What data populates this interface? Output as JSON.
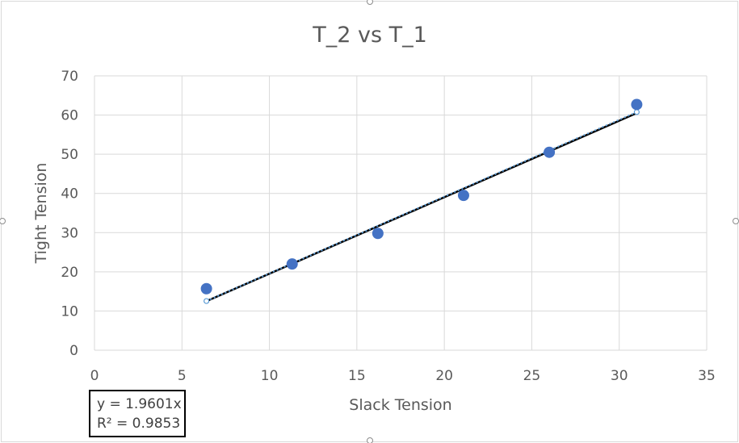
{
  "chart_data": {
    "type": "scatter",
    "title": "T_2 vs T_1",
    "xlabel": "Slack Tension",
    "ylabel": "Tight Tension",
    "xlim": [
      0,
      35
    ],
    "ylim": [
      0,
      70
    ],
    "x_ticks": [
      0,
      5,
      10,
      15,
      20,
      25,
      30,
      35
    ],
    "y_ticks": [
      0,
      10,
      20,
      30,
      40,
      50,
      60,
      70
    ],
    "grid": true,
    "series": [
      {
        "x": [
          6.4,
          11.3,
          16.2,
          21.1,
          26.0,
          31.0
        ],
        "y": [
          15.7,
          22.0,
          29.8,
          39.5,
          50.5,
          62.7
        ],
        "color": "#4472c4"
      }
    ],
    "fit_lines": [
      {
        "style": "solid",
        "color": "#000000",
        "x": [
          6.4,
          31.0
        ],
        "y": [
          12.5,
          60.5
        ]
      },
      {
        "style": "dotted",
        "color": "#5b9bd5",
        "slope": 1.9601,
        "x": [
          6.4,
          31.0
        ]
      }
    ],
    "trendline_label": {
      "equation": "y = 1.9601x",
      "r_squared": "R² = 0.9853"
    }
  }
}
